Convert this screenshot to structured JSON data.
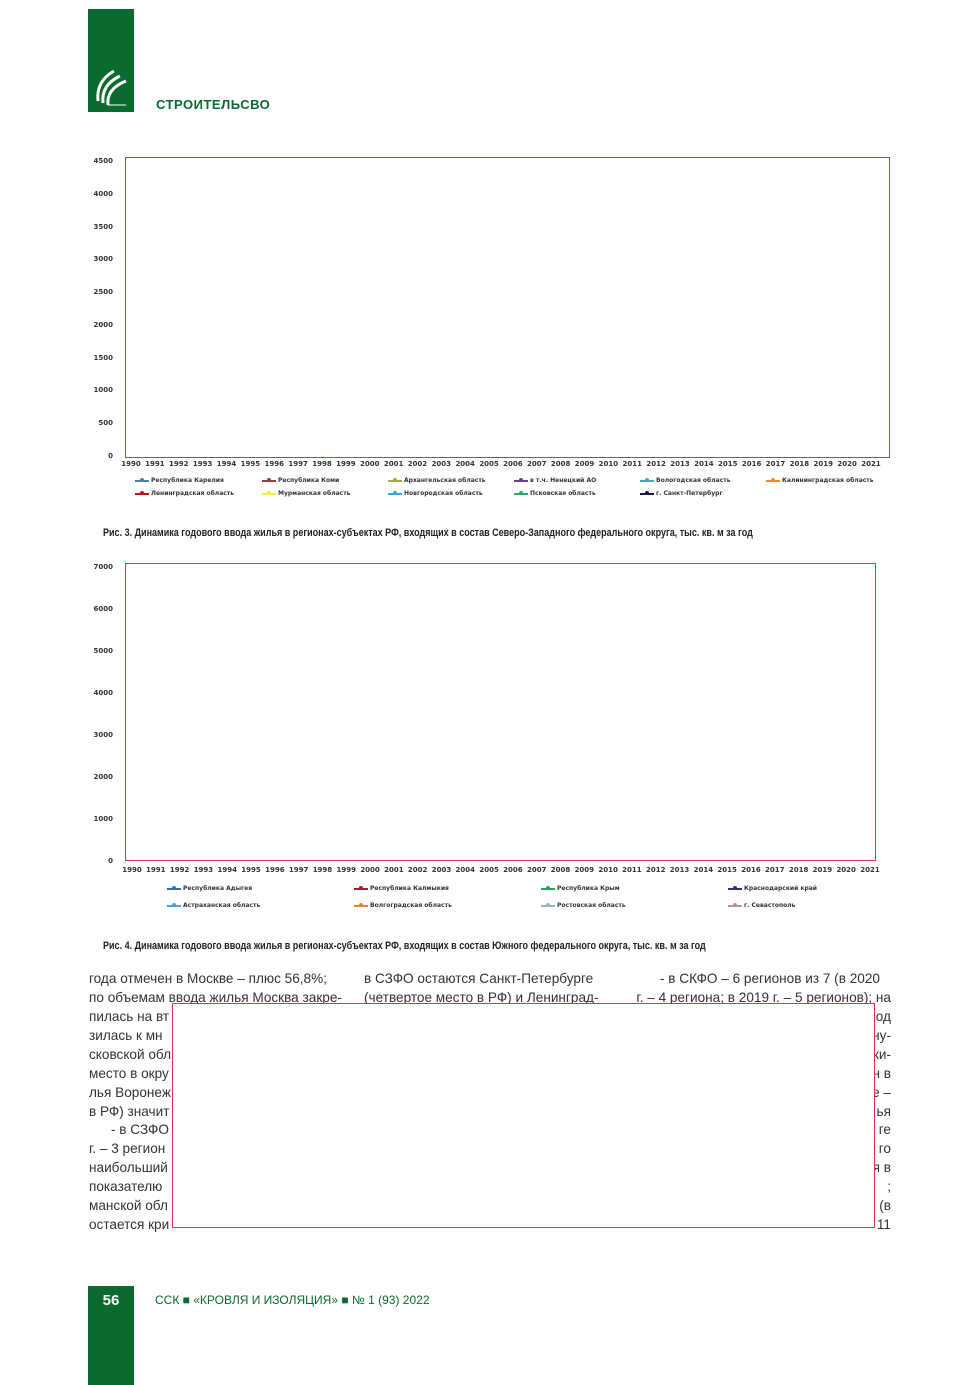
{
  "header": {
    "section": "СТРОИТЕЛЬСВО",
    "logo": "ССК"
  },
  "figures": [
    {
      "caption": "Рис. 3. Динамика годового ввода жилья в регионах-субъектах РФ, входящих в состав Северо-Западного федерального округа, тыс. кв. м за год"
    },
    {
      "caption": "Рис. 4. Динамика годового ввода жилья в регионах-субъектах РФ, входящих в состав Южного федерального округа, тыс. кв. м за год"
    }
  ],
  "chart_data": [
    {
      "type": "line",
      "ylim": [
        0,
        4500
      ],
      "yticks": [
        "0",
        "500",
        "1000",
        "1500",
        "2000",
        "2500",
        "3000",
        "3500",
        "4000",
        "4500"
      ],
      "categories": [
        "1990",
        "1991",
        "1992",
        "1993",
        "1994",
        "1995",
        "1996",
        "1997",
        "1998",
        "1999",
        "2000",
        "2001",
        "2002",
        "2003",
        "2004",
        "2005",
        "2006",
        "2007",
        "2008",
        "2009",
        "2010",
        "2011",
        "2012",
        "2013",
        "2014",
        "2015",
        "2016",
        "2017",
        "2018",
        "2019",
        "2020",
        "2021"
      ],
      "legend_position": "bottom",
      "series": [
        {
          "name": "Республика Карелия",
          "color": "#4a7eb8"
        },
        {
          "name": "Республика Коми",
          "color": "#9c3b3b"
        },
        {
          "name": "Архангельская область",
          "color": "#9bb040"
        },
        {
          "name": "в т.ч. Ненецкий АО",
          "color": "#6a3d9a"
        },
        {
          "name": "Вологодская область",
          "color": "#4aa3c0"
        },
        {
          "name": "Калининградская область",
          "color": "#f08a24"
        },
        {
          "name": "Ленинградская область",
          "color": "#c0141c"
        },
        {
          "name": "Мурманская область",
          "color": "#f5ee3a"
        },
        {
          "name": "Новгородская область",
          "color": "#3aa5e0"
        },
        {
          "name": "Псковская область",
          "color": "#2ea86a"
        },
        {
          "name": "г. Санкт-Петербург",
          "color": "#1a1a4a"
        }
      ]
    },
    {
      "type": "line",
      "ylim": [
        0,
        7000
      ],
      "yticks": [
        "0",
        "1000",
        "2000",
        "3000",
        "4000",
        "5000",
        "6000",
        "7000"
      ],
      "categories": [
        "1990",
        "1991",
        "1992",
        "1993",
        "1994",
        "1995",
        "1996",
        "1997",
        "1998",
        "1999",
        "2000",
        "2001",
        "2002",
        "2003",
        "2004",
        "2005",
        "2006",
        "2007",
        "2008",
        "2009",
        "2010",
        "2011",
        "2012",
        "2013",
        "2014",
        "2015",
        "2016",
        "2017",
        "2018",
        "2019",
        "2020",
        "2021"
      ],
      "legend_position": "bottom",
      "series": [
        {
          "name": "Республика Адыгея",
          "color": "#3a6fb0"
        },
        {
          "name": "Республика Калмыкия",
          "color": "#a0202a"
        },
        {
          "name": "Республика Крым",
          "color": "#2aa060"
        },
        {
          "name": "Краснодарский край",
          "color": "#3a2a7a"
        },
        {
          "name": "Астраханская область",
          "color": "#4aa3d0"
        },
        {
          "name": "Волгоградская область",
          "color": "#e08a30"
        },
        {
          "name": "Ростовская область",
          "color": "#9ab0c8"
        },
        {
          "name": "г. Севастополь",
          "color": "#c08ab0"
        }
      ]
    }
  ],
  "body": {
    "col1": [
      "года отмечен в Москве – плюс 56,8%;",
      "по объемам ввода жилья Москва закре-",
      "пилась на вт",
      "зилась к мн",
      "сковской обл",
      "место в окру",
      "лья Воронеж",
      "в РФ) значит",
      "- в СЗФО",
      "г. – 3 регион",
      "наибольший",
      "показателю",
      "манской обл",
      "остается кри"
    ],
    "col2": [
      "в СЗФО остаются Санкт-Петербурге",
      "(четвертое место в РФ) и Ленинград-"
    ],
    "col3": [
      "- в СКФО – 6 регионов из 7 (в 2020",
      "г. – 4 региона; в 2019 г. – 5 регионов); на",
      "од",
      "ну-",
      "ки-",
      "н в",
      "е –",
      "ья",
      "ге",
      "го",
      "я в",
      ";",
      "(в",
      "11"
    ]
  },
  "footer": {
    "page": "56",
    "text": "ССК ■ «КРОВЛЯ И ИЗОЛЯЦИЯ» ■ № 1 (93) 2022"
  }
}
